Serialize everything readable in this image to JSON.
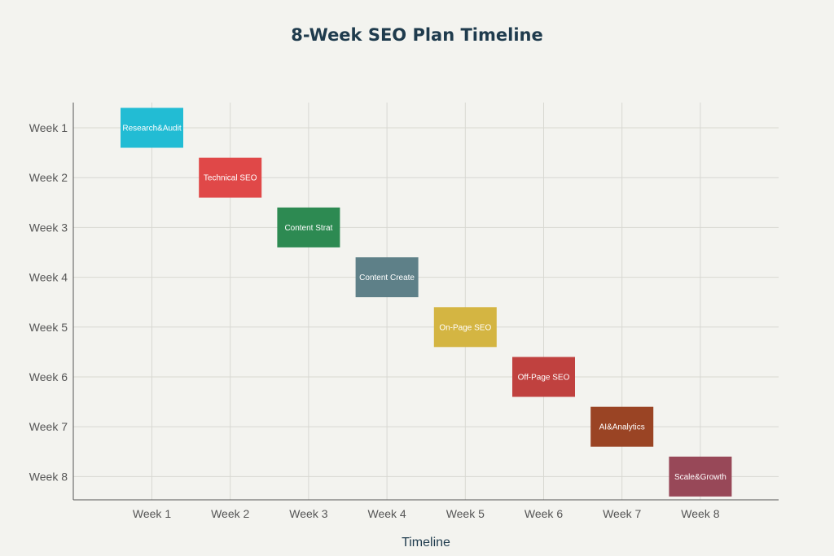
{
  "chart_data": {
    "type": "bar",
    "subtype": "gantt",
    "title": "8-Week SEO Plan Timeline",
    "xlabel": "Timeline",
    "ylabel": "",
    "x_ticks": [
      "Week 1",
      "Week 2",
      "Week 3",
      "Week 4",
      "Week 5",
      "Week 6",
      "Week 7",
      "Week 8"
    ],
    "y_ticks": [
      "Week 1",
      "Week 2",
      "Week 3",
      "Week 4",
      "Week 5",
      "Week 6",
      "Week 7",
      "Week 8"
    ],
    "grid": true,
    "tasks": [
      {
        "label": "Research&Audit",
        "row": "Week 1",
        "week": 1,
        "color": "#22bcd4"
      },
      {
        "label": "Technical SEO",
        "row": "Week 2",
        "week": 2,
        "color": "#e04848"
      },
      {
        "label": "Content Strat",
        "row": "Week 3",
        "week": 3,
        "color": "#2d8a52"
      },
      {
        "label": "Content Create",
        "row": "Week 4",
        "week": 4,
        "color": "#5e8088"
      },
      {
        "label": "On-Page SEO",
        "row": "Week 5",
        "week": 5,
        "color": "#d4b542"
      },
      {
        "label": "Off-Page SEO",
        "row": "Week 6",
        "week": 6,
        "color": "#c0413f"
      },
      {
        "label": "AI&Analytics",
        "row": "Week 7",
        "week": 7,
        "color": "#9a4424"
      },
      {
        "label": "Scale&Growth",
        "row": "Week 8",
        "week": 8,
        "color": "#984858"
      }
    ]
  }
}
